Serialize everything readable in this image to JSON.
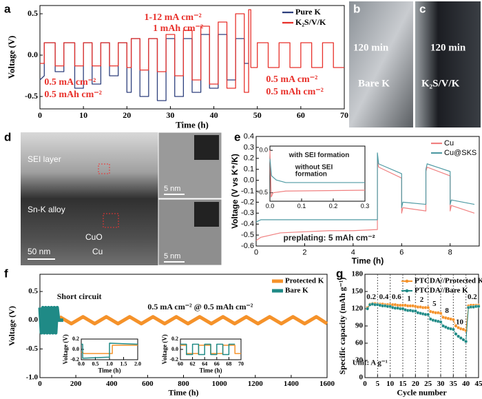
{
  "chart_data": [
    {
      "type": "line",
      "panel": "a",
      "xlabel": "Time (h)",
      "ylabel": "Voltage (V)",
      "legend": "upper right",
      "xlim": [
        0,
        70
      ],
      "xticks": [
        0,
        10,
        20,
        30,
        40,
        50,
        60,
        70
      ],
      "ylim": [
        -0.65,
        0.6
      ],
      "yticks": [
        {
          "value": -0.5,
          "label": "-0.5"
        },
        {
          "value": 0,
          "label": "0.0"
        },
        {
          "value": 0.5,
          "label": "0.5"
        }
      ],
      "annotations": [
        "1-12 mA cm⁻²",
        "1 mAh cm⁻²",
        "0.5 mA cm⁻²",
        "0.5 mAh cm⁻²",
        "0.5 mA cm⁻²",
        "0.5 mAh cm⁻²"
      ],
      "series": [
        {
          "name": "Pure K",
          "color": "#2d3f7c",
          "x": [
            0,
            1,
            1,
            3.5,
            3.5,
            5.5,
            5.5,
            8,
            8,
            10,
            10,
            12,
            12,
            14,
            14,
            16,
            16,
            18,
            18,
            20,
            20,
            21,
            21,
            23,
            23,
            25,
            25,
            27,
            27,
            29,
            29,
            31,
            31,
            33,
            33,
            35,
            35,
            37,
            37,
            39,
            39,
            41,
            41,
            43,
            43,
            45,
            45,
            47,
            47,
            48
          ],
          "values": [
            -0.3,
            -0.25,
            0.15,
            0.15,
            -0.2,
            -0.2,
            0.15,
            0.15,
            -0.4,
            -0.4,
            0.15,
            0.15,
            -0.35,
            -0.35,
            0.15,
            0.15,
            -0.25,
            -0.25,
            0.15,
            0.15,
            -0.45,
            -0.45,
            0.2,
            0.2,
            -0.5,
            -0.5,
            0.2,
            0.2,
            -0.55,
            -0.55,
            0.2,
            0.2,
            -0.5,
            -0.5,
            0.2,
            0.2,
            -0.45,
            -0.45,
            0.25,
            0.25,
            -0.4,
            -0.4,
            0.25,
            0.25,
            -0.3,
            -0.3,
            0.2,
            0.2,
            -0.1,
            -0.1
          ]
        },
        {
          "name": "K₂S/V/K",
          "color": "#e8302a",
          "x": [
            0,
            1,
            1,
            3.5,
            3.5,
            5.5,
            5.5,
            8,
            8,
            10,
            10,
            12,
            12,
            14,
            14,
            16,
            16,
            18,
            18,
            20,
            20,
            21,
            21,
            23,
            23,
            25,
            25,
            27,
            27,
            29,
            29,
            31,
            31,
            33,
            33,
            35,
            35,
            37,
            37,
            39,
            39,
            41,
            41,
            43,
            43,
            45,
            45,
            47,
            47,
            48,
            48,
            48.5,
            48.5,
            50,
            50,
            52.5,
            52.5,
            55,
            55,
            57.5,
            57.5,
            60,
            60,
            62.5,
            62.5,
            65,
            65,
            67.5,
            67.5,
            70
          ],
          "values": [
            -0.1,
            -0.1,
            0.15,
            0.15,
            -0.13,
            -0.13,
            0.15,
            0.15,
            -0.13,
            -0.13,
            0.15,
            0.15,
            -0.13,
            -0.13,
            0.15,
            0.15,
            -0.13,
            -0.13,
            0.15,
            0.15,
            -0.15,
            -0.15,
            0.2,
            0.2,
            -0.18,
            -0.18,
            0.2,
            0.2,
            -0.2,
            -0.2,
            0.25,
            0.25,
            -0.25,
            -0.25,
            0.3,
            0.3,
            -0.3,
            -0.3,
            0.35,
            0.35,
            -0.35,
            -0.35,
            0.4,
            0.4,
            -0.4,
            -0.4,
            0.5,
            0.5,
            -0.45,
            -0.45,
            0.55,
            0.55,
            -0.15,
            -0.15,
            0.15,
            0.15,
            -0.15,
            -0.15,
            0.15,
            0.15,
            -0.15,
            -0.15,
            0.15,
            0.15,
            -0.15,
            -0.15,
            0.15,
            0.15,
            -0.15,
            -0.15
          ]
        }
      ]
    },
    {
      "type": "line",
      "panel": "e",
      "xlabel": "Time (h)",
      "ylabel": "Voltage (V vs K⁺/K)",
      "legend": "upper right",
      "xlim": [
        0,
        9.2
      ],
      "xticks": [
        0,
        2,
        4,
        6,
        8
      ],
      "ylim": [
        -0.6,
        0.4
      ],
      "yticks": [
        {
          "value": -0.6,
          "label": "-0.6"
        },
        {
          "value": -0.5,
          "label": "-0.5"
        },
        {
          "value": -0.4,
          "label": "-0.4"
        },
        {
          "value": -0.3,
          "label": "-0.3"
        },
        {
          "value": -0.2,
          "label": "-0.2"
        },
        {
          "value": -0.1,
          "label": "-0.1"
        },
        {
          "value": 0,
          "label": "0.0"
        },
        {
          "value": 0.1,
          "label": "0.1"
        },
        {
          "value": 0.2,
          "label": "0.2"
        },
        {
          "value": 0.3,
          "label": "0.3"
        },
        {
          "value": 0.4,
          "label": "0.4"
        }
      ],
      "annotations": [
        "preplating: 5 mAh cm⁻²"
      ],
      "series": [
        {
          "name": "Cu",
          "color": "#f08080",
          "x": [
            0,
            0.2,
            1,
            2,
            3,
            4,
            5,
            5,
            5.05,
            6,
            6,
            6.05,
            7,
            7,
            7.05,
            8,
            8,
            8.05,
            9
          ],
          "values": [
            -0.55,
            -0.52,
            -0.48,
            -0.47,
            -0.46,
            -0.46,
            -0.45,
            0.18,
            0.12,
            0.02,
            -0.3,
            -0.25,
            -0.28,
            0.08,
            0.12,
            0.04,
            -0.28,
            -0.23,
            -0.3
          ]
        },
        {
          "name": "Cu@SKS",
          "color": "#4f9aa3",
          "x": [
            0,
            0.2,
            1,
            2,
            3,
            4,
            5,
            5,
            5.05,
            6,
            6,
            6.05,
            7,
            7,
            7.05,
            8,
            8,
            8.05,
            9
          ],
          "values": [
            -0.38,
            -0.36,
            -0.36,
            -0.36,
            -0.36,
            -0.36,
            -0.36,
            0.25,
            0.15,
            0.06,
            -0.25,
            -0.2,
            -0.22,
            0.1,
            0.15,
            0.08,
            -0.22,
            -0.18,
            -0.22
          ]
        }
      ],
      "insets": [
        {
          "type": "line",
          "xlim": [
            0,
            0.3
          ],
          "xticks": [
            {
              "value": 0,
              "label": "0.0"
            },
            {
              "value": 0.1,
              "label": "0.1"
            },
            {
              "value": 0.2,
              "label": "0.2"
            },
            {
              "value": 0.3,
              "label": "0.3"
            }
          ],
          "ylim": [
            -0.6,
            0.05
          ],
          "yticks": [
            {
              "value": -0.5,
              "label": "-0.5"
            },
            {
              "value": 0,
              "label": "0.0"
            }
          ],
          "annotations": [
            "with SEI formation",
            "without SEI",
            "formation"
          ],
          "series": [
            {
              "color": "#f08080",
              "x": [
                0,
                0.004,
                0.01,
                0.05,
                0.3
              ],
              "values": [
                0,
                -0.55,
                -0.5,
                -0.48,
                -0.47
              ]
            },
            {
              "color": "#4f9aa3",
              "x": [
                0,
                0.005,
                0.02,
                0.05,
                0.3
              ],
              "values": [
                -0.1,
                -0.3,
                -0.35,
                -0.38,
                -0.38
              ]
            }
          ]
        }
      ]
    },
    {
      "type": "line",
      "panel": "f",
      "xlabel": "Time (h)",
      "ylabel": "Voltage (V)",
      "legend": "upper right",
      "xlim": [
        0,
        1600
      ],
      "xticks": [
        0,
        200,
        400,
        600,
        800,
        1000,
        1200,
        1400,
        1600
      ],
      "ylim": [
        -1.0,
        0.8
      ],
      "yticks": [
        {
          "value": -1.0,
          "label": "-1.0"
        },
        {
          "value": -0.5,
          "label": "-0.5"
        },
        {
          "value": 0,
          "label": "0.0"
        },
        {
          "value": 0.5,
          "label": "0.5"
        }
      ],
      "annotations": [
        "Short circuit",
        "0.5 mA cm⁻² @ 0.5 mAh cm⁻²"
      ],
      "series": [
        {
          "name": "Protected K",
          "color": "#f5922a",
          "x": [
            110,
            175,
            240,
            305,
            370,
            435,
            500,
            565,
            630,
            695,
            760,
            825,
            890,
            955,
            1020,
            1085,
            1150,
            1215,
            1280,
            1345,
            1410,
            1475,
            1540,
            1600
          ],
          "values": [
            0.06,
            -0.06,
            0.06,
            -0.06,
            0.06,
            -0.06,
            0.06,
            -0.06,
            0.06,
            -0.06,
            0.06,
            -0.06,
            0.06,
            -0.06,
            0.06,
            -0.06,
            0.06,
            -0.06,
            0.06,
            -0.06,
            0.06,
            -0.06,
            0.06,
            -0.06
          ]
        },
        {
          "name": "Bare K",
          "color": "#1f8a86",
          "x": [
            0,
            8,
            16,
            24,
            32,
            40,
            48,
            56,
            64,
            72,
            80,
            88,
            96,
            104,
            130
          ],
          "values": [
            0.22,
            -0.22,
            0.22,
            -0.22,
            0.22,
            -0.22,
            0.22,
            -0.22,
            0.22,
            -0.22,
            0.22,
            -0.22,
            0.22,
            0,
            0
          ]
        }
      ],
      "insets": [
        {
          "type": "line",
          "xlabel": "Time (h)",
          "ylabel": "Voltage (V)",
          "xlim": [
            0,
            2
          ],
          "xticks": [
            {
              "value": 0,
              "label": "0.0"
            },
            {
              "value": 0.5,
              "label": "0.5"
            },
            {
              "value": 1,
              "label": "1.0"
            },
            {
              "value": 1.5,
              "label": "1.5"
            },
            {
              "value": 2,
              "label": "2.0"
            }
          ],
          "ylim": [
            -0.2,
            0.2
          ],
          "yticks": [
            {
              "value": -0.2,
              "label": "-0.2"
            },
            {
              "value": 0,
              "label": "0.0"
            },
            {
              "value": 0.2,
              "label": "0.2"
            }
          ],
          "series": [
            {
              "color": "#f5922a",
              "x": [
                0,
                0.1,
                1.1,
                1.1,
                2
              ],
              "values": [
                -0.05,
                -0.08,
                -0.08,
                0.08,
                0.08
              ]
            },
            {
              "color": "#1f8a86",
              "x": [
                0,
                0.05,
                0.05,
                1,
                1,
                2
              ],
              "values": [
                0.1,
                0.1,
                -0.17,
                -0.15,
                0.12,
                0.1
              ]
            }
          ]
        },
        {
          "type": "line",
          "xlabel": "Time (h)",
          "ylabel": "Voltage (V)",
          "xlim": [
            60,
            70
          ],
          "xticks": [
            60,
            62,
            64,
            66,
            68,
            70
          ],
          "ylim": [
            -0.2,
            0.2
          ],
          "yticks": [
            {
              "value": -0.2,
              "label": "-0.2"
            },
            {
              "value": 0,
              "label": "0.0"
            },
            {
              "value": 0.2,
              "label": "0.2"
            }
          ],
          "series": [
            {
              "color": "#f5922a",
              "x": [
                60,
                61,
                61,
                63,
                63,
                65,
                65,
                67,
                67,
                69,
                69,
                70
              ],
              "values": [
                0.08,
                0.08,
                -0.08,
                -0.08,
                0.08,
                0.08,
                -0.08,
                -0.08,
                0.08,
                0.08,
                -0.08,
                -0.08
              ]
            },
            {
              "color": "#1f8a86",
              "x": [
                60,
                61,
                61,
                62,
                62,
                63,
                63,
                64,
                64,
                65,
                65,
                66,
                66,
                67,
                67,
                68,
                68,
                69
              ],
              "values": [
                0.1,
                0.1,
                -0.1,
                -0.1,
                0.1,
                0.1,
                -0.1,
                -0.1,
                0.1,
                0.1,
                -0.1,
                -0.1,
                0.1,
                0.1,
                -0.1,
                -0.1,
                0.1,
                0.1
              ]
            }
          ]
        }
      ]
    },
    {
      "type": "line",
      "panel": "g",
      "markers": true,
      "dashed_grid": true,
      "xlabel": "Cycle number",
      "ylabel": "Specific capacity (mAh g⁻¹)",
      "legend": "upper right",
      "xlim": [
        0,
        45
      ],
      "xticks": [
        0,
        5,
        10,
        15,
        20,
        25,
        30,
        35,
        40,
        45
      ],
      "ylim": [
        0,
        180
      ],
      "yticks": [
        0,
        30,
        60,
        90,
        120,
        150,
        180
      ],
      "annotations": [
        "0.2",
        "0.4",
        "0.6",
        "1",
        "2",
        "5",
        "8",
        "10",
        "0.2",
        "Unit: A g⁻¹"
      ],
      "x": [
        1,
        2,
        3,
        4,
        5,
        6,
        7,
        8,
        9,
        10,
        11,
        12,
        13,
        14,
        15,
        16,
        17,
        18,
        19,
        20,
        21,
        22,
        23,
        24,
        25,
        26,
        27,
        28,
        29,
        30,
        31,
        32,
        33,
        34,
        35,
        36,
        37,
        38,
        39,
        40,
        41,
        42,
        43,
        44,
        45
      ],
      "series": [
        {
          "name": "PTCDA//Protected K",
          "color": "#f5922a",
          "values": [
            122,
            128,
            129,
            129,
            128,
            128,
            128,
            127,
            127,
            127,
            127,
            127,
            126,
            126,
            126,
            126,
            125,
            125,
            125,
            124,
            123,
            123,
            122,
            122,
            122,
            115,
            114,
            113,
            113,
            112,
            105,
            104,
            103,
            102,
            101,
            90,
            87,
            85,
            84,
            82,
            125,
            126,
            126,
            126,
            126
          ]
        },
        {
          "name": "PTCDA//Bare K",
          "color": "#1f8a86",
          "values": [
            120,
            127,
            128,
            127,
            127,
            126,
            125,
            125,
            124,
            124,
            122,
            121,
            121,
            120,
            120,
            118,
            117,
            117,
            116,
            116,
            113,
            112,
            111,
            110,
            110,
            102,
            100,
            99,
            98,
            97,
            90,
            88,
            86,
            85,
            84,
            76,
            72,
            69,
            66,
            63,
            122,
            123,
            123,
            124,
            124
          ]
        }
      ]
    }
  ],
  "images": [
    {
      "panel": "b",
      "labels": [
        "120 min",
        "Bare K"
      ]
    },
    {
      "panel": "c",
      "labels": [
        "120 min",
        "K₂S/V/K"
      ]
    },
    {
      "panel": "d",
      "labels": [
        "SEI layer",
        "Sn-K alloy",
        "CuO",
        "Cu",
        "50 nm",
        "5 nm",
        "5 nm"
      ]
    }
  ]
}
